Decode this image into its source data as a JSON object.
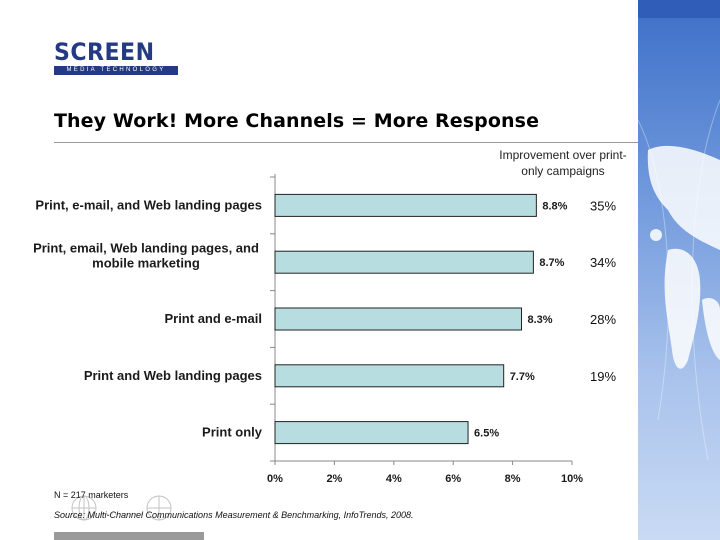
{
  "logo": {
    "word": "SCREEN",
    "sub": "MEDIA TECHNOLOGY"
  },
  "title": "They Work! More Channels = More Response",
  "improvement_heading": "Improvement over print-only campaigns",
  "footnote": "N = 217 marketers",
  "source": "Source: Multi-Channel Communications Measurement & Benchmarking, InfoTrends, 2008.",
  "colors": {
    "bar_fill": "#b8dde1",
    "bar_stroke": "#222222",
    "brand": "#243a82",
    "panel": "#5a88d4"
  },
  "icons": {
    "side": "world-map-panel",
    "watermark": "globe-watermark"
  },
  "chart_data": {
    "type": "bar",
    "orientation": "horizontal",
    "categories": [
      "Print, e-mail, and Web landing pages",
      "Print, email, Web landing pages, and mobile marketing",
      "Print and e-mail",
      "Print and Web landing pages",
      "Print only"
    ],
    "category_lines": [
      [
        "Print, e-mail, and Web landing pages"
      ],
      [
        "Print, email, Web landing pages, and",
        "mobile marketing"
      ],
      [
        "Print and e-mail"
      ],
      [
        "Print and Web landing pages"
      ],
      [
        "Print only"
      ]
    ],
    "values": [
      8.8,
      8.7,
      8.3,
      7.7,
      6.5
    ],
    "value_labels": [
      "8.8%",
      "8.7%",
      "8.3%",
      "7.7%",
      "6.5%"
    ],
    "improvement": [
      "35%",
      "34%",
      "28%",
      "19%",
      ""
    ],
    "xlim": [
      0,
      10
    ],
    "xticks": [
      "0%",
      "2%",
      "4%",
      "6%",
      "8%",
      "10%"
    ],
    "xtick_values": [
      0,
      2,
      4,
      6,
      8,
      10
    ],
    "title": "",
    "xlabel": "",
    "ylabel": "",
    "grid": false,
    "legend": "none"
  }
}
